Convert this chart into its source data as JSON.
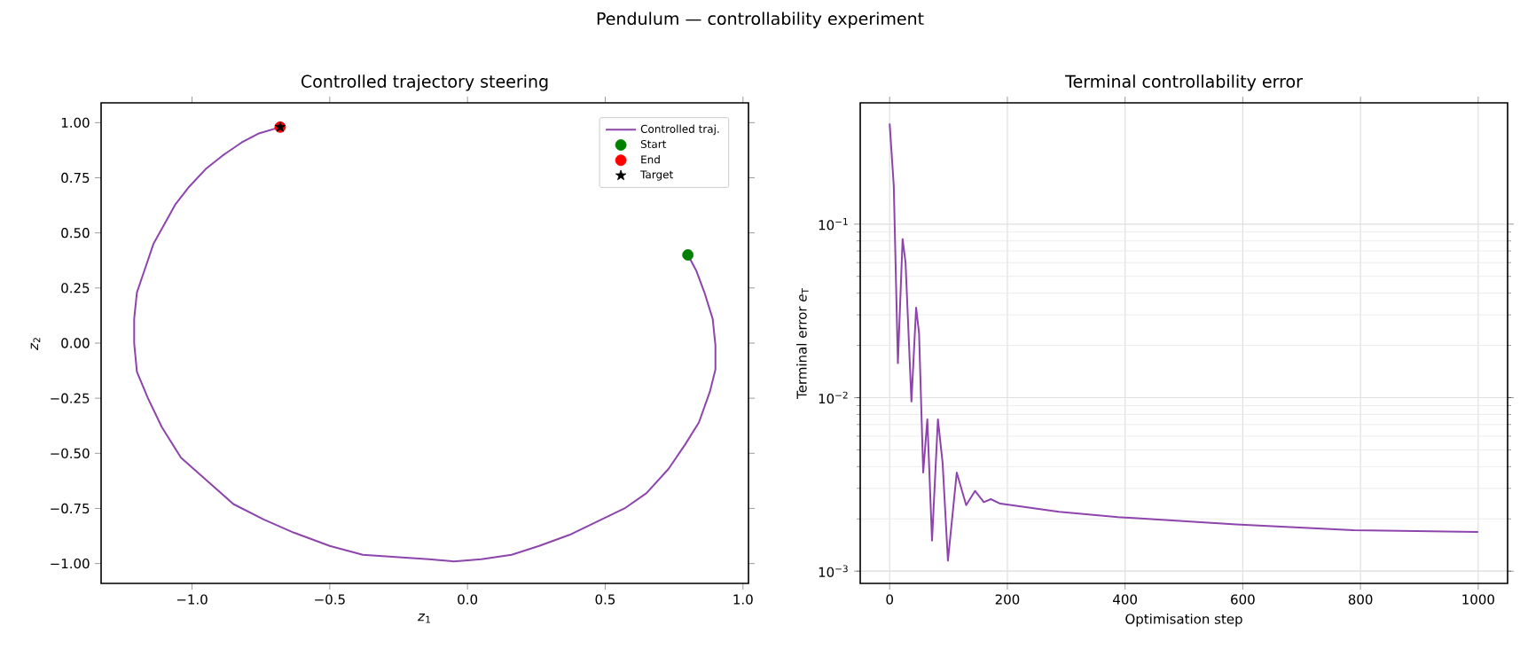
{
  "chart_data": [
    {
      "type": "line",
      "title": "Controlled trajectory steering",
      "xlabel": "*z*$_{1}$",
      "ylabel": "*z*$_{2}$",
      "annotations": [
        "Pendulum — controllability experiment"
      ],
      "xlim": [
        -1.33,
        1.02
      ],
      "ylim": [
        -1.09,
        1.09
      ],
      "xticks": [
        {
          "value": -1,
          "label": "−1.0"
        },
        {
          "value": -0.5,
          "label": "−0.5"
        },
        {
          "value": 0,
          "label": "0.0"
        },
        {
          "value": 0.5,
          "label": "0.5"
        },
        {
          "value": 1,
          "label": "1.0"
        }
      ],
      "yticks": [
        {
          "value": -1,
          "label": "−1.00"
        },
        {
          "value": -0.75,
          "label": "−0.75"
        },
        {
          "value": -0.5,
          "label": "−0.50"
        },
        {
          "value": -0.25,
          "label": "−0.25"
        },
        {
          "value": 0,
          "label": "0.00"
        },
        {
          "value": 0.25,
          "label": "0.25"
        },
        {
          "value": 0.5,
          "label": "0.50"
        },
        {
          "value": 0.75,
          "label": "0.75"
        },
        {
          "value": 1,
          "label": "1.00"
        }
      ],
      "legend": "top right",
      "series": [
        {
          "name": "Controlled traj.",
          "color": "#8e44ad",
          "marker": "none",
          "x": [
            0.8,
            0.83,
            0.86,
            0.89,
            0.9,
            0.9,
            0.88,
            0.84,
            0.79,
            0.73,
            0.65,
            0.57,
            0.47,
            0.37,
            0.26,
            0.16,
            0.05,
            -0.05,
            -0.14,
            -0.26,
            -0.38,
            -0.5,
            -0.63,
            -0.74,
            -0.85,
            -0.94,
            -1.04,
            -1.11,
            -1.16,
            -1.2,
            -1.21,
            -1.21,
            -1.2,
            -1.17,
            -1.14,
            -1.1,
            -1.06,
            -1.01,
            -0.95,
            -0.89,
            -0.82,
            -0.76,
            -0.68
          ],
          "values": [
            0.4,
            0.33,
            0.23,
            0.11,
            -0.01,
            -0.12,
            -0.22,
            -0.36,
            -0.46,
            -0.57,
            -0.68,
            -0.75,
            -0.81,
            -0.87,
            -0.92,
            -0.96,
            -0.98,
            -0.99,
            -0.98,
            -0.97,
            -0.96,
            -0.92,
            -0.86,
            -0.8,
            -0.73,
            -0.63,
            -0.52,
            -0.38,
            -0.25,
            -0.13,
            0,
            0.11,
            0.23,
            0.34,
            0.45,
            0.54,
            0.63,
            0.71,
            0.79,
            0.85,
            0.91,
            0.95,
            0.98
          ]
        },
        {
          "name": "Start",
          "type": "scatter",
          "color": "#008000",
          "marker": "circle",
          "x": [
            0.8
          ],
          "values": [
            0.4
          ]
        },
        {
          "name": "End",
          "type": "scatter",
          "color": "#ff0000",
          "marker": "circle",
          "x": [
            -0.68
          ],
          "values": [
            0.98
          ]
        },
        {
          "name": "Target",
          "type": "scatter",
          "color": "#000000",
          "marker": "star",
          "x": [
            -0.68
          ],
          "values": [
            0.98
          ]
        }
      ]
    },
    {
      "type": "line",
      "title": "Terminal controllability error",
      "xlabel": "Optimisation step",
      "ylabel": "Terminal error  *e*$_{T}$",
      "log": "y",
      "grid": true,
      "xlim": [
        -50,
        1050
      ],
      "ylim": [
        0.00085,
        0.5
      ],
      "xticks": [
        0,
        200,
        400,
        600,
        800,
        1000
      ],
      "yticks": [
        {
          "value": 0.001,
          "label": "10$^{−3}$"
        },
        {
          "value": 0.01,
          "label": "10$^{−2}$"
        },
        {
          "value": 0.1,
          "label": "10$^{−1}$"
        }
      ],
      "series": [
        {
          "color": "#8e44ad",
          "marker": "none",
          "x": [
            0,
            7,
            14,
            22,
            27,
            37,
            45,
            50,
            57,
            64,
            72,
            82,
            90,
            99,
            114,
            130,
            145,
            160,
            172,
            188,
            288,
            388,
            589,
            789,
            1000
          ],
          "values": [
            0.38,
            0.166,
            0.0158,
            0.082,
            0.06,
            0.0095,
            0.033,
            0.0234,
            0.0037,
            0.0075,
            0.0015,
            0.0075,
            0.0042,
            0.00115,
            0.0037,
            0.0024,
            0.0029,
            0.0025,
            0.0026,
            0.00245,
            0.0022,
            0.00205,
            0.00186,
            0.00172,
            0.00168
          ]
        }
      ]
    }
  ]
}
